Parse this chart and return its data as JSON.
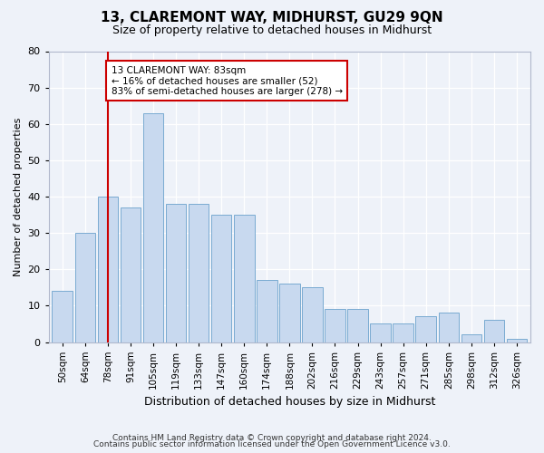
{
  "title": "13, CLAREMONT WAY, MIDHURST, GU29 9QN",
  "subtitle": "Size of property relative to detached houses in Midhurst",
  "xlabel": "Distribution of detached houses by size in Midhurst",
  "ylabel": "Number of detached properties",
  "bar_labels": [
    "50sqm",
    "64sqm",
    "78sqm",
    "91sqm",
    "105sqm",
    "119sqm",
    "133sqm",
    "147sqm",
    "160sqm",
    "174sqm",
    "188sqm",
    "202sqm",
    "216sqm",
    "229sqm",
    "243sqm",
    "257sqm",
    "271sqm",
    "285sqm",
    "298sqm",
    "312sqm",
    "326sqm"
  ],
  "bar_values": [
    14,
    30,
    40,
    37,
    63,
    38,
    38,
    35,
    35,
    17,
    16,
    15,
    9,
    9,
    5,
    5,
    7,
    8,
    2,
    6,
    1
  ],
  "bar_color": "#c8d9ef",
  "bar_edge_color": "#7aabd1",
  "vline_x_label": "78sqm",
  "vline_color": "#cc0000",
  "annotation_line1": "13 CLAREMONT WAY: 83sqm",
  "annotation_line2": "← 16% of detached houses are smaller (52)",
  "annotation_line3": "83% of semi-detached houses are larger (278) →",
  "annotation_box_color": "white",
  "annotation_box_edge": "#cc0000",
  "ylim": [
    0,
    80
  ],
  "yticks": [
    0,
    10,
    20,
    30,
    40,
    50,
    60,
    70,
    80
  ],
  "footer1": "Contains HM Land Registry data © Crown copyright and database right 2024.",
  "footer2": "Contains public sector information licensed under the Open Government Licence v3.0.",
  "bg_color": "#eef2f9",
  "title_fontsize": 11,
  "subtitle_fontsize": 9,
  "tick_fontsize": 7.5,
  "ylabel_fontsize": 8,
  "xlabel_fontsize": 9
}
